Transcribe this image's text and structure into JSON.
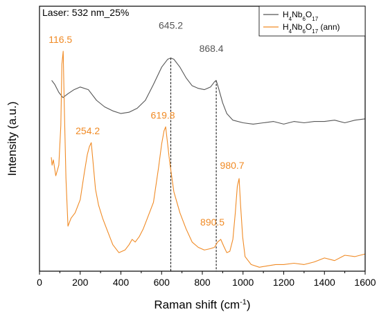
{
  "chart_data": {
    "type": "line",
    "title": "",
    "corner_note": "Laser: 532 nm_25%",
    "xlabel": {
      "main": "Raman shift (cm",
      "sup": "-1",
      "close": ")"
    },
    "ylabel": "Intensity (a.u.)",
    "xlim": [
      0,
      1600
    ],
    "ylim": [
      0,
      100
    ],
    "x_ticks": [
      0,
      200,
      400,
      600,
      800,
      1000,
      1200,
      1400,
      1600
    ],
    "x_tick_labels": [
      "0",
      "200",
      "400",
      "600",
      "800",
      "1000",
      "1200",
      "1400",
      "1600"
    ],
    "y_ticks_labeled": false,
    "grid": false,
    "legend_position": "top-right",
    "colors": {
      "raw": "#555555",
      "ann": "#f08a24"
    },
    "series": [
      {
        "name": {
          "base": "H",
          "s1": "4",
          "m1": "Nb",
          "s2": "6",
          "m2": "O",
          "s3": "17",
          "suffix": ""
        },
        "color": "#555555",
        "x": [
          60,
          75,
          95,
          115,
          140,
          170,
          200,
          240,
          280,
          320,
          360,
          400,
          440,
          480,
          520,
          560,
          600,
          630,
          645,
          660,
          690,
          720,
          750,
          780,
          810,
          840,
          860,
          868,
          880,
          900,
          920,
          950,
          1000,
          1050,
          1100,
          1150,
          1200,
          1250,
          1300,
          1350,
          1400,
          1450,
          1500,
          1550,
          1600
        ],
        "y": [
          72,
          70.5,
          67.5,
          65.5,
          67,
          68.5,
          69.5,
          68.5,
          64.5,
          62,
          60.5,
          59.5,
          60,
          61.5,
          64.5,
          70.5,
          77,
          80,
          80.5,
          80,
          77,
          73,
          70,
          69,
          68.5,
          69.5,
          71.5,
          72,
          69,
          63.5,
          59.5,
          57,
          56,
          55.5,
          56,
          56.5,
          55.5,
          56.5,
          56,
          56.5,
          56.5,
          57,
          56,
          57,
          57.5
        ]
      },
      {
        "name": {
          "base": "H",
          "s1": "4",
          "m1": "Nb",
          "s2": "6",
          "m2": "O",
          "s3": "17",
          "suffix": " (ann)"
        },
        "color": "#f08a24",
        "x": [
          58,
          62,
          68,
          80,
          95,
          105,
          110,
          116.5,
          122,
          130,
          140,
          155,
          175,
          200,
          220,
          235,
          245,
          254.2,
          262,
          275,
          290,
          310,
          330,
          360,
          390,
          420,
          440,
          455,
          470,
          490,
          510,
          530,
          560,
          585,
          600,
          612,
          619.8,
          628,
          640,
          660,
          690,
          720,
          750,
          780,
          810,
          840,
          860,
          875,
          890.5,
          905,
          920,
          935,
          950,
          962,
          972,
          980.7,
          988,
          998,
          1010,
          1040,
          1080,
          1120,
          1160,
          1200,
          1250,
          1300,
          1350,
          1400,
          1450,
          1500,
          1550,
          1600
        ],
        "y": [
          43,
          40,
          42,
          36,
          40,
          55,
          78,
          83,
          62,
          35,
          17,
          20,
          22,
          27,
          37,
          44,
          47,
          48.5,
          42,
          31,
          25,
          20,
          16,
          10,
          7,
          8,
          10,
          12,
          11,
          13,
          16,
          20,
          26,
          39,
          48,
          53,
          54.5,
          49,
          41,
          30,
          22,
          16,
          11,
          9,
          8,
          8.5,
          9,
          11,
          12,
          9.5,
          7,
          7.5,
          12,
          22,
          32,
          35,
          25,
          13,
          5.5,
          2.5,
          1.5,
          2,
          2.5,
          2.5,
          3,
          2.5,
          3.5,
          5,
          4,
          6,
          5.5,
          6.5
        ]
      }
    ],
    "annotations": [
      {
        "text": "116.5",
        "x": 116.5,
        "y": 83,
        "series": "ann"
      },
      {
        "text": "254.2",
        "x": 254.2,
        "y": 48.5,
        "series": "ann"
      },
      {
        "text": "619.8",
        "x": 619.8,
        "y": 54.5,
        "series": "ann"
      },
      {
        "text": "890.5",
        "x": 890.5,
        "y": 12,
        "series": "ann"
      },
      {
        "text": "980.7",
        "x": 980.7,
        "y": 35,
        "series": "ann"
      },
      {
        "text": "645.2",
        "x": 645.2,
        "y": 80.5,
        "series": "raw"
      },
      {
        "text": "868.4",
        "x": 868.4,
        "y": 72,
        "series": "raw"
      }
    ],
    "reference_lines_x": [
      645.2,
      868.4
    ]
  }
}
